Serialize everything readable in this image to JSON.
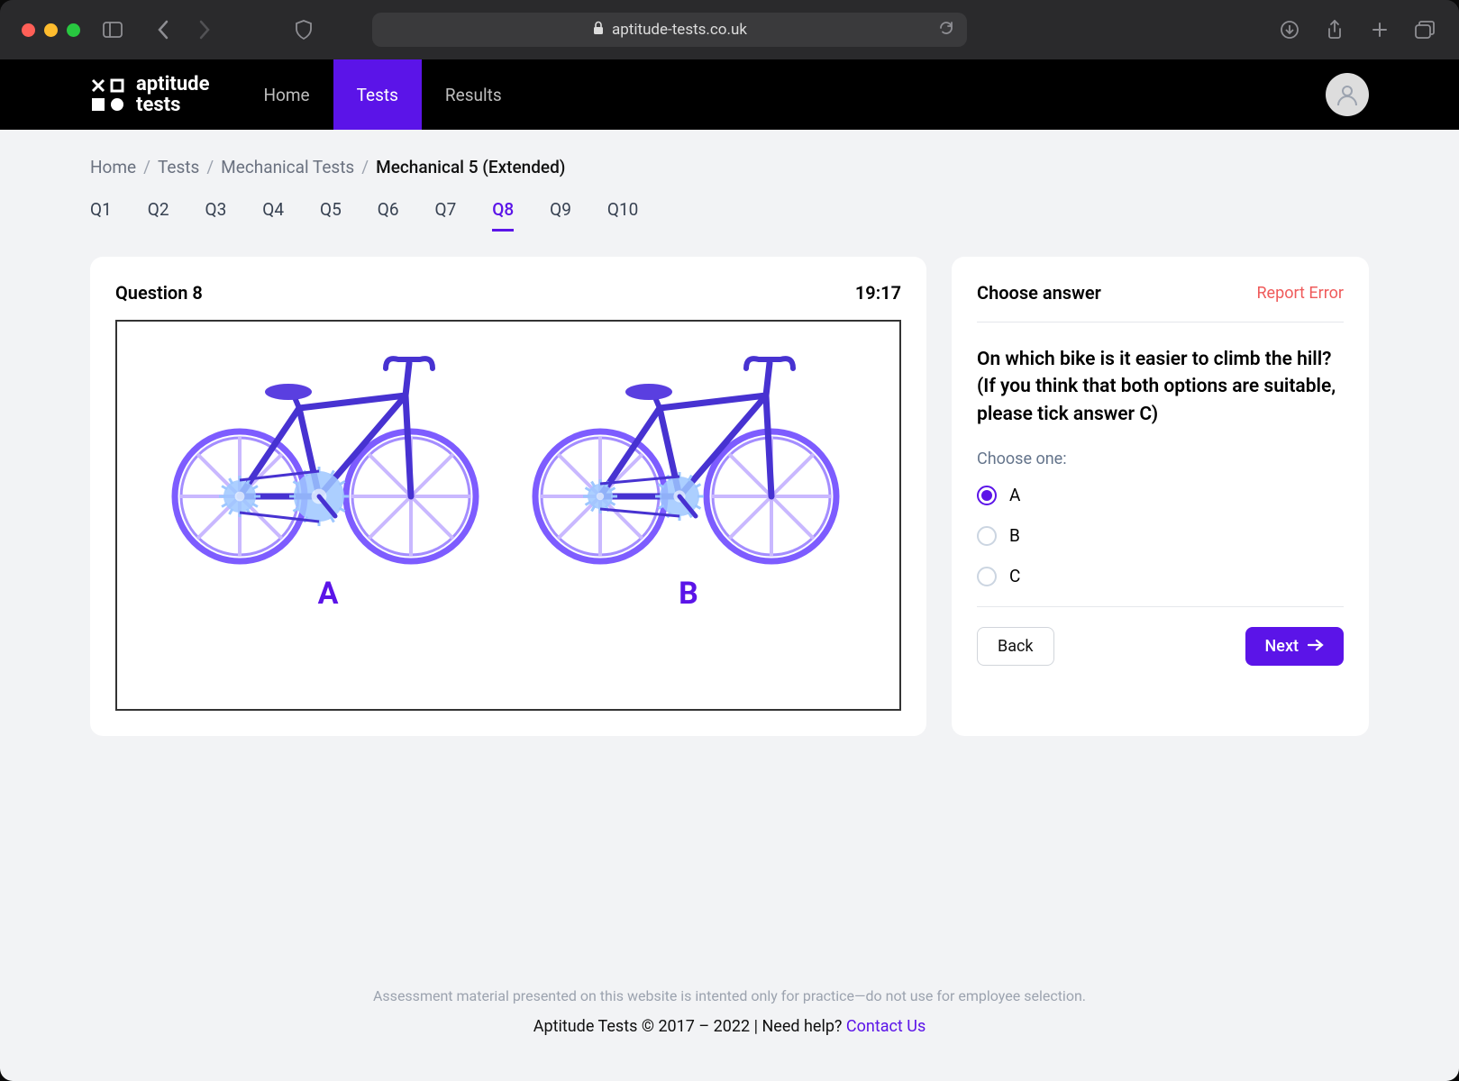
{
  "browser": {
    "url": "aptitude-tests.co.uk"
  },
  "header": {
    "logo_line1": "aptitude",
    "logo_line2": "tests",
    "nav": [
      "Home",
      "Tests",
      "Results"
    ],
    "active_nav_index": 1
  },
  "breadcrumb": {
    "items": [
      "Home",
      "Tests",
      "Mechanical Tests"
    ],
    "current": "Mechanical 5 (Extended)"
  },
  "question_tabs": {
    "items": [
      "Q1",
      "Q2",
      "Q3",
      "Q4",
      "Q5",
      "Q6",
      "Q7",
      "Q8",
      "Q9",
      "Q10"
    ],
    "active_index": 7
  },
  "question": {
    "label": "Question 8",
    "timer": "19:17",
    "figure": {
      "bike_colors": {
        "frame": "#4732d1",
        "wheel_outline": "#7d5cff",
        "spoke": "#c9b8ff",
        "seat": "#5a3fe0",
        "gear": "#9dc7ff",
        "chain": "#4732d1"
      },
      "bikes": [
        {
          "label": "A",
          "rear_sprocket_r": 18,
          "front_sprocket_r": 28
        },
        {
          "label": "B",
          "rear_sprocket_r": 14,
          "front_sprocket_r": 22
        }
      ]
    }
  },
  "answer_panel": {
    "title": "Choose answer",
    "report_label": "Report Error",
    "question_text": "On which bike is it easier to climb the hill? (If you think that both options are suitable, please tick answer C)",
    "choose_label": "Choose one:",
    "options": [
      "A",
      "B",
      "C"
    ],
    "selected_index": 0,
    "back_label": "Back",
    "next_label": "Next"
  },
  "footer": {
    "disclaimer": "Assessment material presented on this website is intented only for practice—do not use for employee selection.",
    "copyright_prefix": "Aptitude Tests © 2017 – 2022 | Need help? ",
    "contact_label": "Contact Us"
  },
  "colors": {
    "accent": "#5b14e8",
    "page_bg": "#f2f3f5",
    "error": "#ef5b5b"
  }
}
